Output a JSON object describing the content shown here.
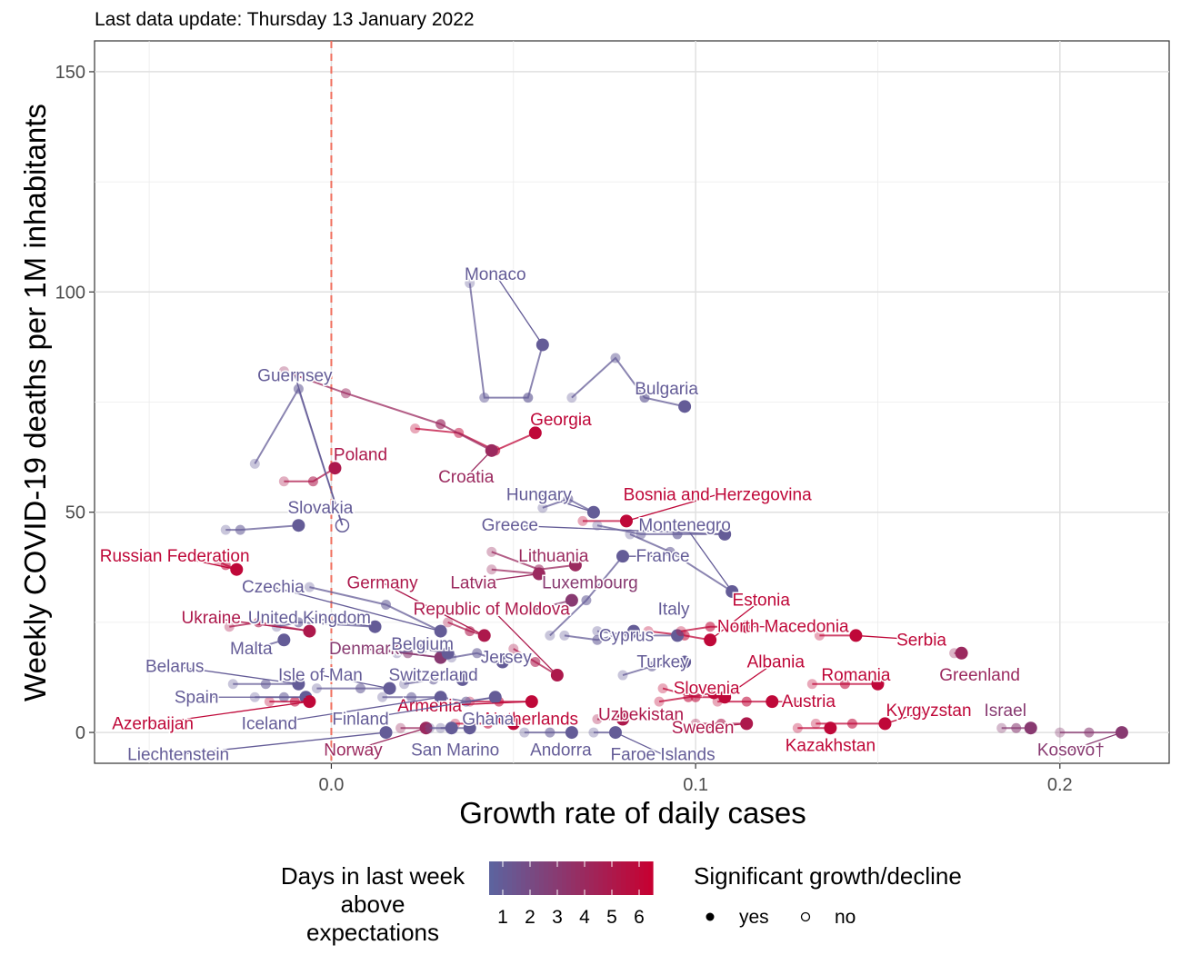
{
  "chart_data": {
    "type": "scatter",
    "subtitle": "Last data update: Thursday 13 January 2022",
    "xlabel": "Growth rate of daily cases",
    "ylabel": "Weekly COVID-19 deaths per 1M inhabitants",
    "xlim": [
      -0.065,
      0.23
    ],
    "ylim": [
      -7,
      157
    ],
    "x_ticks": [
      0.0,
      0.1,
      0.2
    ],
    "x_tick_labels": [
      "0.0",
      "0.1",
      "0.2"
    ],
    "y_ticks": [
      0,
      50,
      100,
      150
    ],
    "y_tick_labels": [
      "0",
      "50",
      "100",
      "150"
    ],
    "grid": true,
    "reference_line": {
      "x": 0,
      "style": "dashed",
      "color": "#f0705f"
    },
    "colors": {
      "low": "#5b64a0",
      "high": "#c80030"
    },
    "legend": {
      "position": "bottom",
      "color_title": "Days in last week above expectations",
      "color_title_lines": [
        "Days in last week",
        "above",
        "expectations"
      ],
      "color_values": [
        "1",
        "2",
        "3",
        "4",
        "5",
        "6"
      ],
      "shape_title": "Significant growth/decline",
      "shape_items": [
        {
          "label": "yes",
          "filled": true
        },
        {
          "label": "no",
          "filled": false
        }
      ]
    },
    "series": [
      {
        "name": "Monaco",
        "days": 1,
        "sig": true,
        "x": [
          0.038,
          0.042,
          0.054,
          0.058
        ],
        "y": [
          102,
          76,
          76,
          88
        ],
        "label": {
          "text": "Monaco",
          "x": 0.045,
          "y": 104
        }
      },
      {
        "name": "Bulgaria",
        "days": 1,
        "sig": true,
        "x": [
          0.066,
          0.078,
          0.086,
          0.097
        ],
        "y": [
          76,
          85,
          76,
          74
        ],
        "label": {
          "text": "Bulgaria",
          "x": 0.092,
          "y": 78
        }
      },
      {
        "name": "Guernsey",
        "days": 1,
        "sig": false,
        "x": [
          -0.021,
          -0.009,
          0.003
        ],
        "y": [
          61,
          78,
          47
        ],
        "label": {
          "text": "Guernsey",
          "x": -0.01,
          "y": 81
        }
      },
      {
        "name": "Georgia",
        "days": 6,
        "sig": true,
        "x": [
          0.023,
          0.035,
          0.045,
          0.056
        ],
        "y": [
          69,
          68,
          64,
          68
        ],
        "label": {
          "text": "Georgia",
          "x": 0.063,
          "y": 71
        }
      },
      {
        "name": "Croatia",
        "days": 4,
        "sig": true,
        "x": [
          -0.013,
          0.004,
          0.03,
          0.044
        ],
        "y": [
          82,
          77,
          70,
          64
        ],
        "label": {
          "text": "Croatia",
          "x": 0.037,
          "y": 58
        }
      },
      {
        "name": "Poland",
        "days": 5,
        "sig": true,
        "x": [
          -0.013,
          -0.005,
          0.001
        ],
        "y": [
          57,
          57,
          60
        ],
        "label": {
          "text": "Poland",
          "x": 0.008,
          "y": 63
        }
      },
      {
        "name": "Slovakia",
        "days": 1,
        "sig": true,
        "x": [
          -0.029,
          -0.025,
          -0.009
        ],
        "y": [
          46,
          46,
          47
        ],
        "label": {
          "text": "Slovakia",
          "x": -0.003,
          "y": 51
        }
      },
      {
        "name": "Hungary",
        "days": 1,
        "sig": true,
        "x": [
          0.058,
          0.065,
          0.072
        ],
        "y": [
          51,
          53,
          50
        ],
        "label": {
          "text": "Hungary",
          "x": 0.057,
          "y": 54
        }
      },
      {
        "name": "Bosnia and Herzegovina",
        "days": 6,
        "sig": true,
        "x": [
          0.069,
          0.081
        ],
        "y": [
          48,
          48
        ],
        "label": {
          "text": "Bosnia and Herzegovina",
          "x": 0.106,
          "y": 54
        }
      },
      {
        "name": "Greece",
        "days": 1,
        "sig": true,
        "x": [
          0.073,
          0.085,
          0.095,
          0.108
        ],
        "y": [
          47,
          45,
          45,
          45
        ],
        "label": {
          "text": "Greece",
          "x": 0.049,
          "y": 47
        }
      },
      {
        "name": "Montenegro",
        "days": 1,
        "sig": true,
        "x": [
          0.082,
          0.093,
          0.11
        ],
        "y": [
          45,
          41,
          32
        ],
        "label": {
          "text": "Montenegro",
          "x": 0.097,
          "y": 47
        }
      },
      {
        "name": "Russian Federation",
        "days": 6,
        "sig": true,
        "x": [
          -0.031,
          -0.029,
          -0.026
        ],
        "y": [
          39,
          38,
          37
        ],
        "label": {
          "text": "Russian Federation",
          "x": -0.043,
          "y": 40
        }
      },
      {
        "name": "Lithuania",
        "days": 4,
        "sig": true,
        "x": [
          0.044,
          0.057,
          0.067
        ],
        "y": [
          41,
          37,
          38
        ],
        "label": {
          "text": "Lithuania",
          "x": 0.061,
          "y": 40
        }
      },
      {
        "name": "France",
        "days": 1,
        "sig": true,
        "x": [
          0.06,
          0.07,
          0.08
        ],
        "y": [
          22,
          30,
          40
        ],
        "label": {
          "text": "France",
          "x": 0.091,
          "y": 40
        }
      },
      {
        "name": "Czechia",
        "days": 1,
        "sig": true,
        "x": [
          -0.006,
          0.015,
          0.03
        ],
        "y": [
          33,
          29,
          23
        ],
        "label": {
          "text": "Czechia",
          "x": -0.016,
          "y": 33
        }
      },
      {
        "name": "Latvia",
        "days": 4,
        "sig": true,
        "x": [
          0.044,
          0.057
        ],
        "y": [
          37,
          36
        ],
        "label": {
          "text": "Latvia",
          "x": 0.039,
          "y": 34
        }
      },
      {
        "name": "Luxembourg",
        "days": 3,
        "sig": true,
        "x": [
          0.056,
          0.066
        ],
        "y": [
          28,
          30
        ],
        "label": {
          "text": "Luxembourg",
          "x": 0.071,
          "y": 34
        }
      },
      {
        "name": "Germany",
        "days": 5,
        "sig": true,
        "x": [
          0.032,
          0.038,
          0.042
        ],
        "y": [
          25,
          23,
          22
        ],
        "label": {
          "text": "Germany",
          "x": 0.014,
          "y": 34
        }
      },
      {
        "name": "Estonia",
        "days": 6,
        "sig": true,
        "x": [
          0.087,
          0.097,
          0.104
        ],
        "y": [
          23,
          22,
          21
        ],
        "label": {
          "text": "Estonia",
          "x": 0.118,
          "y": 30
        }
      },
      {
        "name": "Italy",
        "days": 1,
        "sig": true,
        "x": [
          0.073,
          0.082,
          0.095
        ],
        "y": [
          23,
          22,
          22
        ],
        "label": {
          "text": "Italy",
          "x": 0.094,
          "y": 28
        }
      },
      {
        "name": "Republic of Moldova",
        "days": 5,
        "sig": true,
        "x": [
          0.05,
          0.056,
          0.062
        ],
        "y": [
          19,
          16,
          13
        ],
        "label": {
          "text": "Republic of Moldova",
          "x": 0.044,
          "y": 28
        }
      },
      {
        "name": "Ukraine",
        "days": 5,
        "sig": true,
        "x": [
          -0.028,
          -0.02,
          -0.006
        ],
        "y": [
          24,
          25,
          23
        ],
        "label": {
          "text": "Ukraine",
          "x": -0.033,
          "y": 26
        }
      },
      {
        "name": "United Kingdom",
        "days": 1,
        "sig": true,
        "x": [
          -0.015,
          -0.009,
          0.012
        ],
        "y": [
          24,
          25,
          24
        ],
        "label": {
          "text": "United Kingdom",
          "x": -0.006,
          "y": 26
        }
      },
      {
        "name": "North Macedonia",
        "days": 6,
        "sig": true,
        "x": [
          0.096,
          0.104,
          0.114
        ],
        "y": [
          23,
          24,
          24
        ],
        "label": {
          "text": "North Macedonia",
          "x": 0.124,
          "y": 24
        }
      },
      {
        "name": "Serbia",
        "days": 6,
        "sig": true,
        "x": [
          0.134,
          0.144
        ],
        "y": [
          22,
          22
        ],
        "label": {
          "text": "Serbia",
          "x": 0.162,
          "y": 21
        }
      },
      {
        "name": "Cyprus",
        "days": 1,
        "sig": true,
        "x": [
          0.064,
          0.073,
          0.083
        ],
        "y": [
          22,
          21,
          23
        ],
        "label": {
          "text": "Cyprus",
          "x": 0.081,
          "y": 22
        }
      },
      {
        "name": "Malta",
        "days": 1,
        "sig": true,
        "x": [
          -0.021,
          -0.013
        ],
        "y": [
          19,
          21
        ],
        "label": {
          "text": "Malta",
          "x": -0.022,
          "y": 19
        }
      },
      {
        "name": "Denmark",
        "days": 3,
        "sig": true,
        "x": [
          0.013,
          0.021,
          0.03
        ],
        "y": [
          19,
          18,
          17
        ],
        "label": {
          "text": "Denmark",
          "x": 0.009,
          "y": 19
        }
      },
      {
        "name": "Belgium",
        "days": 1,
        "sig": true,
        "x": [
          0.018,
          0.025,
          0.032
        ],
        "y": [
          18,
          19,
          18
        ],
        "label": {
          "text": "Belgium",
          "x": 0.025,
          "y": 20
        }
      },
      {
        "name": "Jersey",
        "days": 1,
        "sig": true,
        "x": [
          0.033,
          0.04,
          0.047
        ],
        "y": [
          17,
          18,
          16
        ],
        "label": {
          "text": "Jersey",
          "x": 0.048,
          "y": 17
        }
      },
      {
        "name": "Albania",
        "days": 6,
        "sig": true,
        "x": [
          0.091,
          0.1,
          0.108
        ],
        "y": [
          10,
          8,
          8
        ],
        "label": {
          "text": "Albania",
          "x": 0.122,
          "y": 16
        }
      },
      {
        "name": "Turkey",
        "days": 1,
        "sig": true,
        "x": [
          0.08,
          0.088,
          0.097
        ],
        "y": [
          13,
          15,
          16
        ],
        "label": {
          "text": "Turkey",
          "x": 0.091,
          "y": 16
        }
      },
      {
        "name": "Greenland",
        "days": 4,
        "sig": true,
        "x": [
          0.171,
          0.173
        ],
        "y": [
          18,
          18
        ],
        "label": {
          "text": "Greenland",
          "x": 0.178,
          "y": 13
        }
      },
      {
        "name": "Belarus",
        "days": 1,
        "sig": true,
        "x": [
          -0.027,
          -0.018,
          -0.009
        ],
        "y": [
          11,
          11,
          11
        ],
        "label": {
          "text": "Belarus",
          "x": -0.043,
          "y": 15
        }
      },
      {
        "name": "Isle of Man",
        "days": 1,
        "sig": true,
        "x": [
          -0.004,
          0.008,
          0.016
        ],
        "y": [
          10,
          10,
          10
        ],
        "label": {
          "text": "Isle of Man",
          "x": -0.003,
          "y": 13
        }
      },
      {
        "name": "Switzerland",
        "days": 1,
        "sig": true,
        "x": [
          0.02,
          0.028,
          0.036
        ],
        "y": [
          11,
          12,
          12
        ],
        "label": {
          "text": "Switzerland",
          "x": 0.028,
          "y": 13
        }
      },
      {
        "name": "Romania",
        "days": 6,
        "sig": true,
        "x": [
          0.132,
          0.141,
          0.15
        ],
        "y": [
          11,
          11,
          11
        ],
        "label": {
          "text": "Romania",
          "x": 0.144,
          "y": 13
        }
      },
      {
        "name": "Slovenia",
        "days": 6,
        "sig": true,
        "x": [
          0.09,
          0.098,
          0.105
        ],
        "y": [
          7,
          8,
          9
        ],
        "label": {
          "text": "Slovenia",
          "x": 0.103,
          "y": 10
        }
      },
      {
        "name": "Spain",
        "days": 1,
        "sig": true,
        "x": [
          -0.021,
          -0.013,
          -0.007
        ],
        "y": [
          8,
          8,
          8
        ],
        "label": {
          "text": "Spain",
          "x": -0.037,
          "y": 8
        }
      },
      {
        "name": "Austria",
        "days": 6,
        "sig": true,
        "x": [
          0.106,
          0.114,
          0.121
        ],
        "y": [
          7,
          7,
          7
        ],
        "label": {
          "text": "Austria",
          "x": 0.131,
          "y": 7
        }
      },
      {
        "name": "Armenia",
        "days": 6,
        "sig": true,
        "x": [
          0.038,
          0.046,
          0.055
        ],
        "y": [
          7,
          7,
          7
        ],
        "label": {
          "text": "Armenia",
          "x": 0.027,
          "y": 6
        }
      },
      {
        "name": "Azerbaijan",
        "days": 6,
        "sig": true,
        "x": [
          -0.017,
          -0.01,
          -0.006
        ],
        "y": [
          7,
          7,
          7
        ],
        "label": {
          "text": "Azerbaijan",
          "x": -0.049,
          "y": 2
        }
      },
      {
        "name": "Iceland",
        "days": 1,
        "sig": true,
        "x": [
          0.014,
          0.022,
          0.03
        ],
        "y": [
          8,
          8,
          8
        ],
        "label": {
          "text": "Iceland",
          "x": -0.017,
          "y": 2
        }
      },
      {
        "name": "Finland",
        "days": 1,
        "sig": true,
        "x": [
          0.03,
          0.037,
          0.045
        ],
        "y": [
          8,
          7,
          8
        ],
        "label": {
          "text": "Finland",
          "x": 0.008,
          "y": 3
        }
      },
      {
        "name": "Kyrgyzstan",
        "days": 6,
        "sig": true,
        "x": [
          0.133,
          0.143,
          0.152
        ],
        "y": [
          2,
          2,
          2
        ],
        "label": {
          "text": "Kyrgyzstan",
          "x": 0.164,
          "y": 5
        }
      },
      {
        "name": "Israel",
        "days": 3,
        "sig": true,
        "x": [
          0.184,
          0.188,
          0.192
        ],
        "y": [
          1,
          1,
          1
        ],
        "label": {
          "text": "Israel",
          "x": 0.185,
          "y": 5
        }
      },
      {
        "name": "Netherlands",
        "days": 6,
        "sig": true,
        "x": [
          0.034,
          0.043,
          0.05
        ],
        "y": [
          2,
          2,
          2
        ],
        "label": {
          "text": "Netherlands",
          "x": 0.055,
          "y": 3
        }
      },
      {
        "name": "Ghana",
        "days": 1,
        "sig": true,
        "x": [
          0.03,
          0.038
        ],
        "y": [
          1,
          1
        ],
        "label": {
          "text": "Ghana",
          "x": 0.043,
          "y": 3
        }
      },
      {
        "name": "Uzbekistan",
        "days": 5,
        "sig": true,
        "x": [
          0.073,
          0.08
        ],
        "y": [
          3,
          3
        ],
        "label": {
          "text": "Uzbekistan",
          "x": 0.085,
          "y": 4
        }
      },
      {
        "name": "Sweden",
        "days": 5,
        "sig": true,
        "x": [
          0.1,
          0.107,
          0.114
        ],
        "y": [
          2,
          2,
          2
        ],
        "label": {
          "text": "Sweden",
          "x": 0.102,
          "y": 1
        }
      },
      {
        "name": "Kazakhstan",
        "days": 6,
        "sig": true,
        "x": [
          0.128,
          0.137
        ],
        "y": [
          1,
          1
        ],
        "label": {
          "text": "Kazakhstan",
          "x": 0.137,
          "y": -3
        }
      },
      {
        "name": "Kosovo†",
        "days": 3,
        "sig": true,
        "x": [
          0.2,
          0.208,
          0.217
        ],
        "y": [
          0,
          0,
          0
        ],
        "label": {
          "text": "Kosovo†",
          "x": 0.203,
          "y": -4
        }
      },
      {
        "name": "Liechtenstein",
        "days": 1,
        "sig": true,
        "x": [
          0.015
        ],
        "y": [
          0
        ],
        "label": {
          "text": "Liechtenstein",
          "x": -0.042,
          "y": -5
        }
      },
      {
        "name": "Norway",
        "days": 4,
        "sig": true,
        "x": [
          0.019,
          0.026
        ],
        "y": [
          1,
          1
        ],
        "label": {
          "text": "Norway",
          "x": 0.006,
          "y": -4
        }
      },
      {
        "name": "San Marino",
        "days": 1,
        "sig": true,
        "x": [
          0.027,
          0.033
        ],
        "y": [
          1,
          1
        ],
        "label": {
          "text": "San Marino",
          "x": 0.034,
          "y": -4
        }
      },
      {
        "name": "Andorra",
        "days": 1,
        "sig": true,
        "x": [
          0.053,
          0.06,
          0.066
        ],
        "y": [
          0,
          0,
          0
        ],
        "label": {
          "text": "Andorra",
          "x": 0.063,
          "y": -4
        }
      },
      {
        "name": "Faroe Islands",
        "days": 1,
        "sig": true,
        "x": [
          0.072,
          0.078
        ],
        "y": [
          0,
          0
        ],
        "label": {
          "text": "Faroe Islands",
          "x": 0.091,
          "y": -5
        }
      }
    ]
  }
}
